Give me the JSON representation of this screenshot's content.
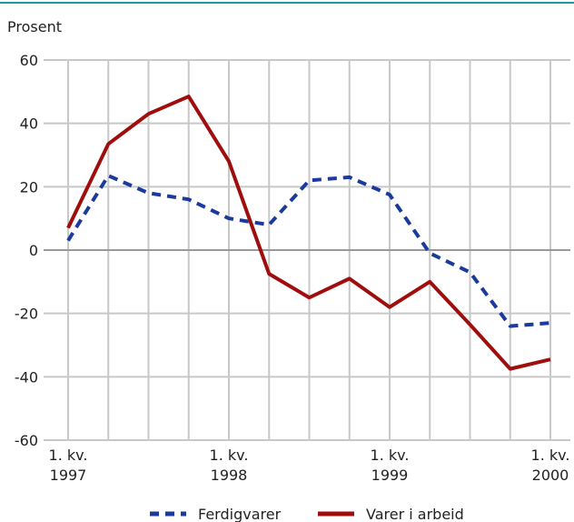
{
  "chart_data": {
    "type": "line",
    "axis_label": "Prosent",
    "categories": [
      "1. kv.\n1997",
      null,
      null,
      null,
      "1. kv.\n1998",
      null,
      null,
      null,
      "1. kv.\n1999",
      null,
      null,
      null,
      "1. kv.\n2000"
    ],
    "series": [
      {
        "name": "Ferdigvarer",
        "color": "#1a3a9c",
        "dashed": true,
        "values": [
          3,
          23.5,
          18,
          16,
          10,
          8,
          22,
          23,
          17.5,
          -1,
          -7,
          -24,
          -23
        ]
      },
      {
        "name": "Varer i arbeid",
        "color": "#a00d0d",
        "dashed": false,
        "values": [
          7,
          33.5,
          43,
          48.5,
          28,
          -7.5,
          -15,
          -9,
          -18,
          -10,
          -23.5,
          -37.5,
          -34.5
        ]
      }
    ],
    "ylim": [
      -60,
      60
    ],
    "yticks": [
      -60,
      -40,
      -20,
      0,
      20,
      40,
      60
    ],
    "grid": true
  }
}
